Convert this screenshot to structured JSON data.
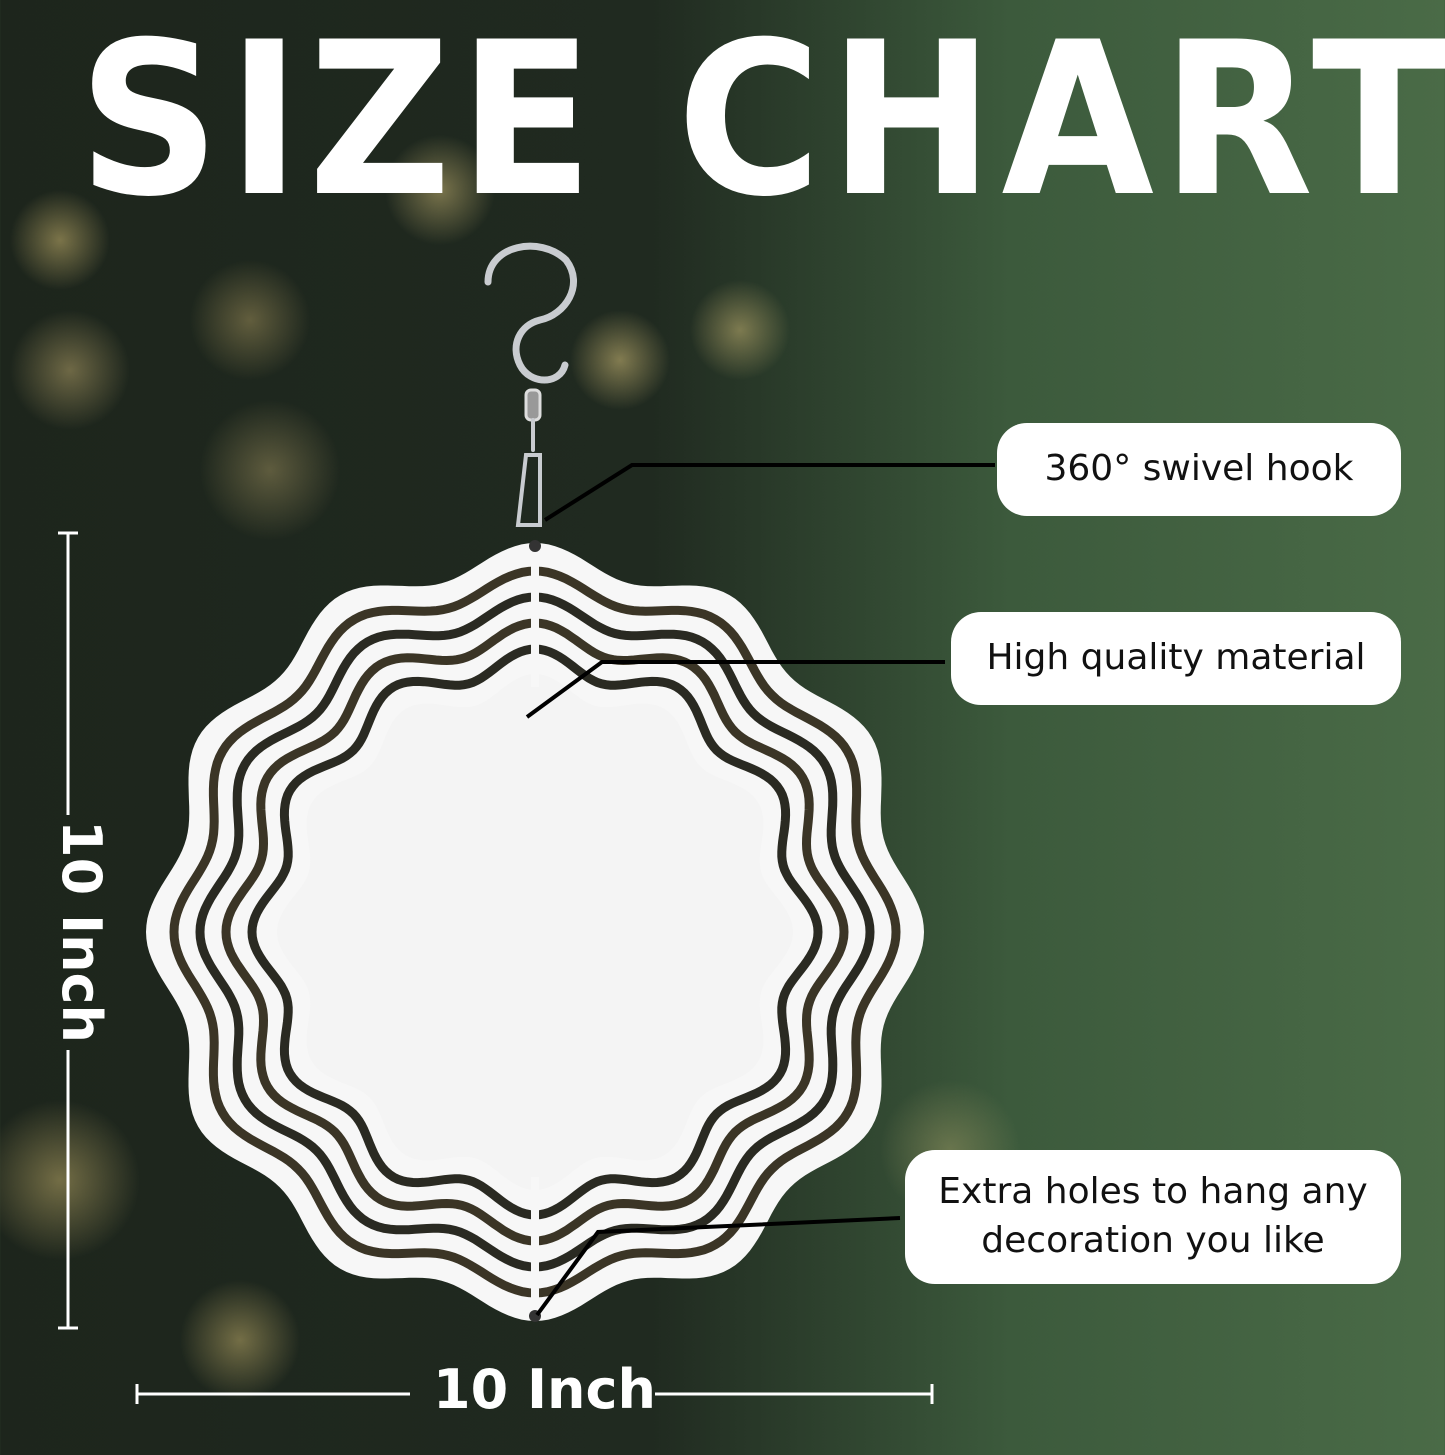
{
  "title": "SIZE CHART",
  "callouts": [
    {
      "label": "360° swivel hook"
    },
    {
      "label": "High quality material"
    },
    {
      "label": "Extra holes to hang any decoration you like"
    }
  ],
  "dimensions": {
    "height": "10 Inch",
    "width": "10 Inch"
  },
  "colors": {
    "text": "#ffffff",
    "callout_bg": "#ffffff",
    "callout_text": "#111111"
  }
}
